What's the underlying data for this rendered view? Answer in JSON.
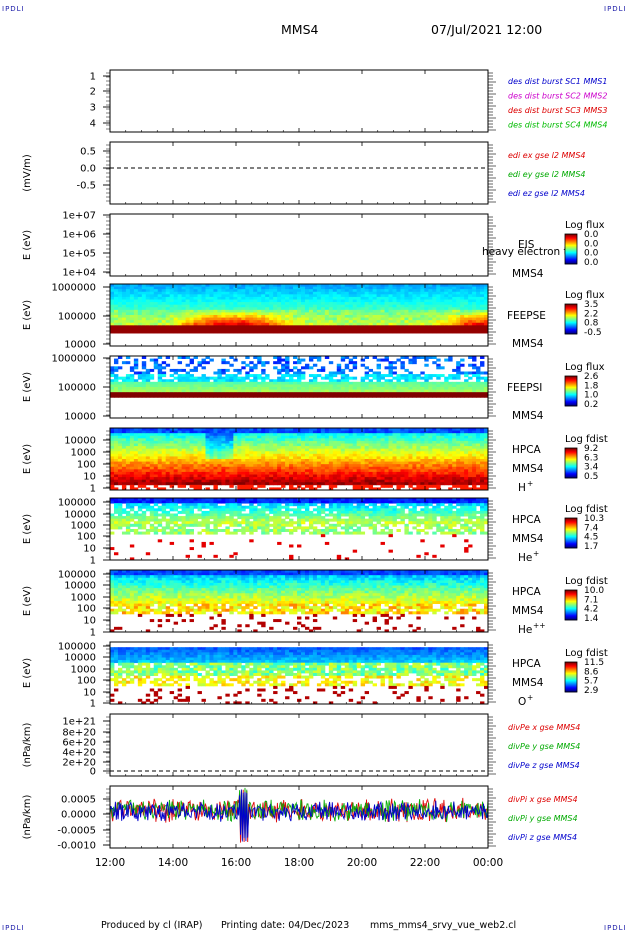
{
  "header": {
    "mission": "MMS4",
    "datetime": "07/Jul/2021 12:00",
    "corner_label": "IPDLI"
  },
  "footer": {
    "produced": "Produced by cl (IRAP)",
    "printing": "Printing date: 04/Dec/2023",
    "file": "mms_mms4_srvy_vue_web2.cl"
  },
  "chart_data": [
    {
      "type": "line",
      "name": "des dist burst",
      "ylim": [
        0.5,
        4.5
      ],
      "yticks": [
        "1",
        "2",
        "3",
        "4"
      ],
      "legend": [
        {
          "text": "des dist burst SC1 MMS1",
          "color": "#0000cc"
        },
        {
          "text": "des dist burst SC2 MMS2",
          "color": "#cc00cc"
        },
        {
          "text": "des dist burst SC3 MMS3",
          "color": "#dd0000"
        },
        {
          "text": "des dist burst SC4 MMS4",
          "color": "#00bb00"
        }
      ],
      "series": []
    },
    {
      "type": "line",
      "name": "edi e gse",
      "ylabel": "(mV/m)",
      "ylim": [
        -0.8,
        0.8
      ],
      "yticks": [
        "0.5",
        "0.0",
        "-0.5"
      ],
      "zero_line": true,
      "legend": [
        {
          "text": "edi ex gse l2 MMS4",
          "color": "#dd0000"
        },
        {
          "text": "edi ey gse l2 MMS4",
          "color": "#00aa00"
        },
        {
          "text": "edi ez gse l2 MMS4",
          "color": "#0000cc"
        }
      ],
      "series": []
    },
    {
      "type": "heatmap",
      "ylabel": "E (eV)",
      "yticks": [
        "1e+07",
        "1e+06",
        "1e+05",
        "1e+04"
      ],
      "instrument": "EIS",
      "spacecraft": "MMS4",
      "overlay_text": "heavy electron to",
      "colorbar": {
        "title": "Log flux",
        "ticks": [
          "0.0",
          "0.0",
          "0.0",
          "0.0"
        ]
      },
      "empty": true
    },
    {
      "type": "heatmap",
      "ylabel": "E (eV)",
      "yticks": [
        "1000000",
        "100000",
        "10000"
      ],
      "instrument": "FEEPSE",
      "spacecraft": "MMS4",
      "colorbar": {
        "title": "Log flux",
        "ticks": [
          "3.5",
          "2.2",
          "0.8",
          "-0.5"
        ]
      },
      "profile": "feepse"
    },
    {
      "type": "heatmap",
      "ylabel": "E (eV)",
      "yticks": [
        "1000000",
        "100000",
        "10000"
      ],
      "instrument": "FEEPSI",
      "spacecraft": "MMS4",
      "colorbar": {
        "title": "Log flux",
        "ticks": [
          "2.6",
          "1.8",
          "1.0",
          "0.2"
        ]
      },
      "profile": "feepsi"
    },
    {
      "type": "heatmap",
      "ylabel": "E (eV)",
      "yticks": [
        "10000",
        "1000",
        "100",
        "10",
        "1"
      ],
      "instrument": "HPCA",
      "spacecraft": "MMS4",
      "species": "H",
      "charge": "+",
      "colorbar": {
        "title": "Log fdist",
        "ticks": [
          "9.2",
          "6.3",
          "3.4",
          "0.5"
        ]
      },
      "profile": "hplus"
    },
    {
      "type": "heatmap",
      "ylabel": "E (eV)",
      "yticks": [
        "100000",
        "10000",
        "1000",
        "100",
        "10",
        "1"
      ],
      "instrument": "HPCA",
      "spacecraft": "MMS4",
      "species": "He",
      "charge": "+",
      "colorbar": {
        "title": "Log fdist",
        "ticks": [
          "10.3",
          "7.4",
          "4.5",
          "1.7"
        ]
      },
      "profile": "heplus"
    },
    {
      "type": "heatmap",
      "ylabel": "E (eV)",
      "yticks": [
        "100000",
        "10000",
        "1000",
        "100",
        "10",
        "1"
      ],
      "instrument": "HPCA",
      "spacecraft": "MMS4",
      "species": "He",
      "charge": "++",
      "colorbar": {
        "title": "Log fdist",
        "ticks": [
          "10.0",
          "7.1",
          "4.2",
          "1.4"
        ]
      },
      "profile": "heplusplus"
    },
    {
      "type": "heatmap",
      "ylabel": "E (eV)",
      "yticks": [
        "100000",
        "10000",
        "1000",
        "100",
        "10",
        "1"
      ],
      "instrument": "HPCA",
      "spacecraft": "MMS4",
      "species": "O",
      "charge": "+",
      "colorbar": {
        "title": "Log fdist",
        "ticks": [
          "11.5",
          "8.6",
          "5.7",
          "2.9"
        ]
      },
      "profile": "oplus"
    },
    {
      "type": "line",
      "name": "divPe",
      "ylabel": "(nPa/km)",
      "yticks": [
        "1e+21",
        "8e+20",
        "6e+20",
        "4e+20",
        "2e+20",
        "0"
      ],
      "zero_line": true,
      "legend": [
        {
          "text": "divPe x gse MMS4",
          "color": "#dd0000"
        },
        {
          "text": "divPe y gse MMS4",
          "color": "#00aa00"
        },
        {
          "text": "divPe z gse MMS4",
          "color": "#0000cc"
        }
      ],
      "series": []
    },
    {
      "type": "line",
      "name": "divPi",
      "ylabel": "(nPa/km)",
      "ylim": [
        -0.0011,
        0.0007
      ],
      "yticks": [
        "0.0005",
        "0.0000",
        "-0.0005",
        "-0.0010"
      ],
      "legend": [
        {
          "text": "divPi x gse MMS4",
          "color": "#dd0000"
        },
        {
          "text": "divPi y gse MMS4",
          "color": "#00aa00"
        },
        {
          "text": "divPi z gse MMS4",
          "color": "#0000cc"
        }
      ],
      "series": [
        {
          "name": "divPi x gse MMS4",
          "color": "#dd0000",
          "mean": 0.0,
          "spread": 0.0003
        },
        {
          "name": "divPi y gse MMS4",
          "color": "#00aa00",
          "mean": 0.0,
          "spread": 0.00028
        },
        {
          "name": "divPi z gse MMS4",
          "color": "#0000cc",
          "mean": -5e-05,
          "spread": 0.00025
        }
      ],
      "event": {
        "time": "16:15",
        "min": -0.00095,
        "max": 0.00065
      }
    }
  ],
  "x_axis": {
    "ticks": [
      "12:00",
      "14:00",
      "16:00",
      "18:00",
      "20:00",
      "22:00",
      "00:00"
    ]
  }
}
